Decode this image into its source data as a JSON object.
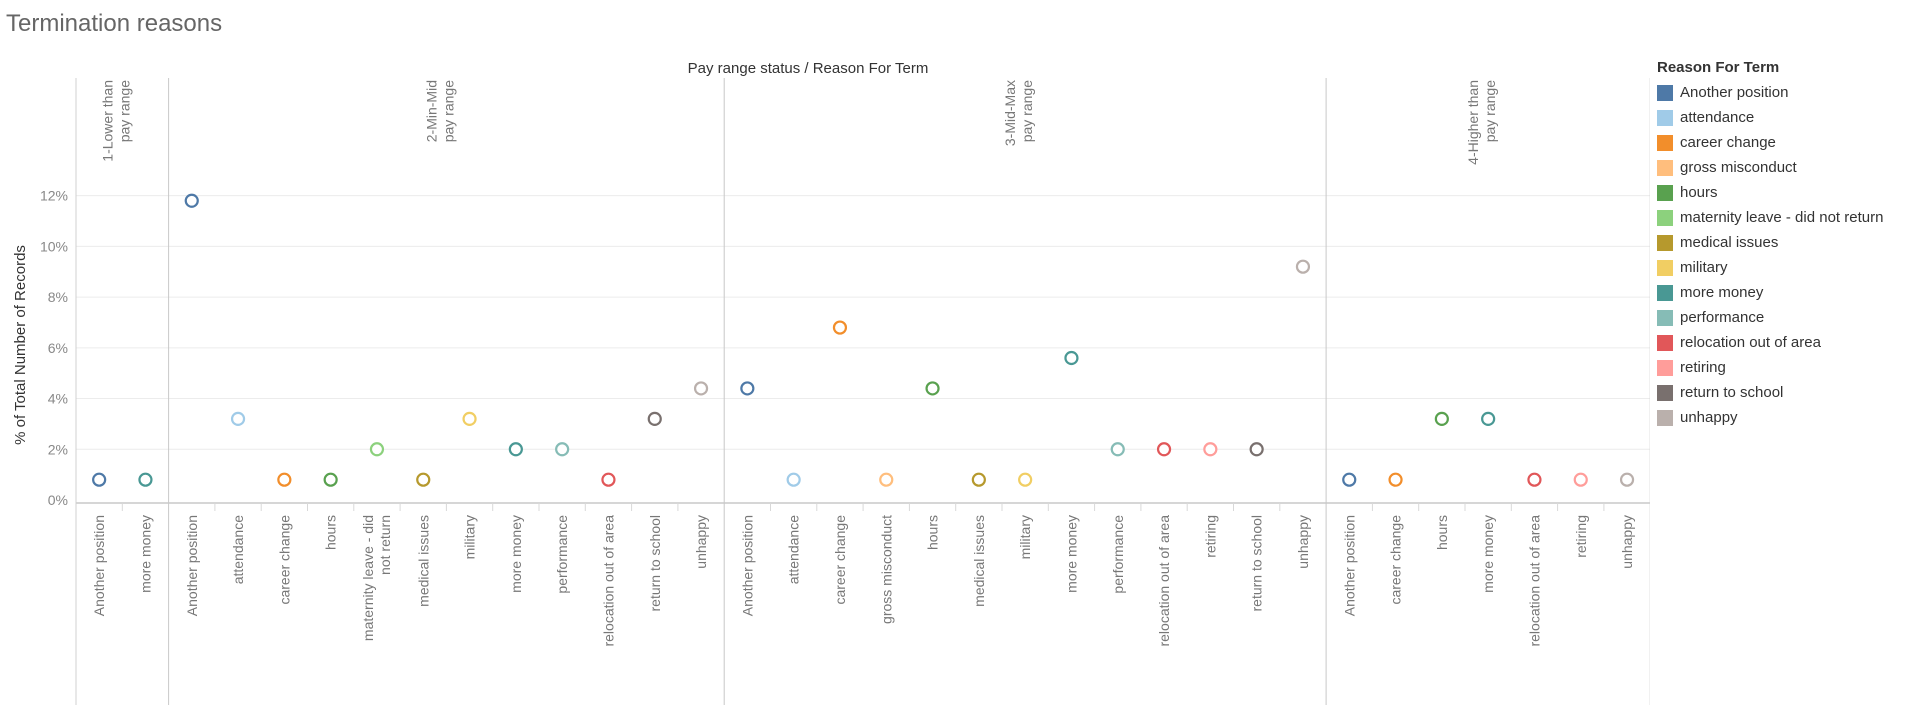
{
  "page": {
    "title": "Termination reasons"
  },
  "chart_data": {
    "type": "scatter",
    "title": "Termination reasons",
    "column_header": "Pay range status  /  Reason For Term",
    "ylabel": "% of Total Number of Records",
    "ylim": [
      0,
      12.5
    ],
    "yticks": [
      0,
      2,
      4,
      6,
      8,
      10,
      12
    ],
    "ytick_labels": [
      "0%",
      "2%",
      "4%",
      "6%",
      "8%",
      "10%",
      "12%"
    ],
    "grid": true,
    "marker": "hollow circle",
    "legend": {
      "title": "Reason For Term",
      "placement": "right",
      "items": [
        {
          "label": "Another position",
          "color": "#4e79a7"
        },
        {
          "label": "attendance",
          "color": "#a0cbe8"
        },
        {
          "label": "career change",
          "color": "#f28e2b"
        },
        {
          "label": "gross misconduct",
          "color": "#ffbe7d"
        },
        {
          "label": "hours",
          "color": "#59a14f"
        },
        {
          "label": "maternity leave - did not return",
          "color": "#8cd17d"
        },
        {
          "label": "medical issues",
          "color": "#b6992d"
        },
        {
          "label": "military",
          "color": "#f1ce63"
        },
        {
          "label": "more money",
          "color": "#499894"
        },
        {
          "label": "performance",
          "color": "#86bcb6"
        },
        {
          "label": "relocation out of area",
          "color": "#e15759"
        },
        {
          "label": "retiring",
          "color": "#ff9d9a"
        },
        {
          "label": "return to school",
          "color": "#79706e"
        },
        {
          "label": "unhappy",
          "color": "#bab0ac"
        }
      ]
    },
    "panels": [
      {
        "header_lines": [
          "1-Lower than",
          "pay range"
        ],
        "points": [
          {
            "reason": "Another position",
            "value": 0.8
          },
          {
            "reason": "more money",
            "value": 0.8
          }
        ]
      },
      {
        "header_lines": [
          "2-Min-Mid",
          "pay range"
        ],
        "points": [
          {
            "reason": "Another position",
            "value": 11.8
          },
          {
            "reason": "attendance",
            "value": 3.2
          },
          {
            "reason": "career change",
            "value": 0.8
          },
          {
            "reason": "hours",
            "value": 0.8
          },
          {
            "reason": "maternity leave - did not return",
            "value": 2.0
          },
          {
            "reason": "medical issues",
            "value": 0.8
          },
          {
            "reason": "military",
            "value": 3.2
          },
          {
            "reason": "more money",
            "value": 2.0
          },
          {
            "reason": "performance",
            "value": 2.0
          },
          {
            "reason": "relocation out of area",
            "value": 0.8
          },
          {
            "reason": "return to school",
            "value": 3.2
          },
          {
            "reason": "unhappy",
            "value": 4.4
          }
        ]
      },
      {
        "header_lines": [
          "3-Mid-Max",
          "pay range"
        ],
        "points": [
          {
            "reason": "Another position",
            "value": 4.4
          },
          {
            "reason": "attendance",
            "value": 0.8
          },
          {
            "reason": "career change",
            "value": 6.8
          },
          {
            "reason": "gross misconduct",
            "value": 0.8
          },
          {
            "reason": "hours",
            "value": 4.4
          },
          {
            "reason": "medical issues",
            "value": 0.8
          },
          {
            "reason": "military",
            "value": 0.8
          },
          {
            "reason": "more money",
            "value": 5.6
          },
          {
            "reason": "performance",
            "value": 2.0
          },
          {
            "reason": "relocation out of area",
            "value": 2.0
          },
          {
            "reason": "retiring",
            "value": 2.0
          },
          {
            "reason": "return to school",
            "value": 2.0
          },
          {
            "reason": "unhappy",
            "value": 9.2
          }
        ]
      },
      {
        "header_lines": [
          "4-Higher than",
          "pay range"
        ],
        "points": [
          {
            "reason": "Another position",
            "value": 0.8
          },
          {
            "reason": "career change",
            "value": 0.8
          },
          {
            "reason": "hours",
            "value": 3.2
          },
          {
            "reason": "more money",
            "value": 3.2
          },
          {
            "reason": "relocation out of area",
            "value": 0.8
          },
          {
            "reason": "retiring",
            "value": 0.8
          },
          {
            "reason": "unhappy",
            "value": 0.8
          }
        ]
      }
    ]
  }
}
